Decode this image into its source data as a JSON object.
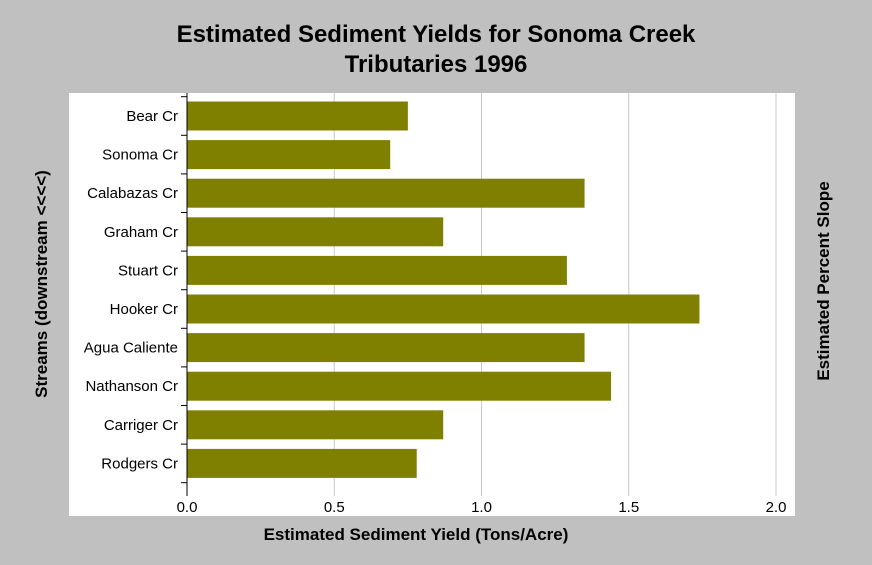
{
  "chart_data": {
    "type": "bar",
    "orientation": "horizontal",
    "title": [
      "Estimated Sediment Yields for Sonoma Creek",
      "Tributaries 1996"
    ],
    "xlabel": "Estimated Sediment Yield (Tons/Acre)",
    "ylabel": "Streams (downstream <<<<)",
    "y2label": "Estimated Percent Slope",
    "categories": [
      "Bear Cr",
      "Sonoma Cr",
      "Calabazas Cr",
      "Graham Cr",
      "Stuart Cr",
      "Hooker Cr",
      "Agua Caliente",
      "Nathanson Cr",
      "Carriger Cr",
      "Rodgers Cr"
    ],
    "values": [
      0.75,
      0.69,
      1.35,
      0.87,
      1.29,
      1.74,
      1.35,
      1.44,
      0.87,
      0.78
    ],
    "xlim": [
      0,
      2.0
    ],
    "xticks": [
      "0.0",
      "0.5",
      "1.0",
      "1.5",
      "2.0"
    ],
    "grid": "vertical",
    "bar_color": "#808000",
    "background_color": "#c0c0c0",
    "plot_background": "#ffffff"
  }
}
